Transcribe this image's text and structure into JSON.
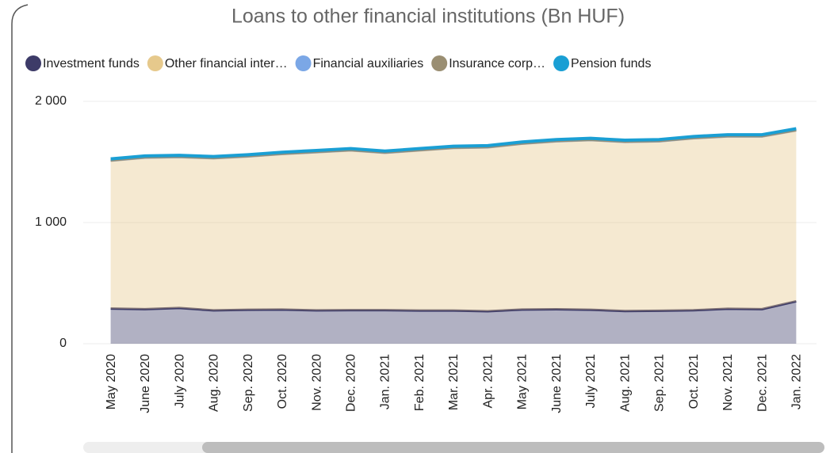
{
  "chart_data": {
    "type": "stacked_area",
    "title": "Loans to other financial institutions (Bn HUF)",
    "categories": [
      "May 2020",
      "June 2020",
      "July 2020",
      "Aug. 2020",
      "Sep. 2020",
      "Oct. 2020",
      "Nov. 2020",
      "Dec. 2020",
      "Jan. 2021",
      "Feb. 2021",
      "Mar. 2021",
      "Apr. 2021",
      "May 2021",
      "June 2021",
      "July 2021",
      "Aug. 2021",
      "Sep. 2021",
      "Oct. 2021",
      "Nov. 2021",
      "Dec. 2021",
      "Jan. 2022"
    ],
    "series": [
      {
        "name": "Investment funds",
        "color": "#3d3b68",
        "values": [
          290,
          285,
          295,
          275,
          280,
          282,
          275,
          277,
          277,
          274,
          274,
          268,
          282,
          284,
          280,
          270,
          272,
          276,
          288,
          285,
          350
        ]
      },
      {
        "name": "Other financial inter…",
        "color": "#e6c98c",
        "values": [
          1220,
          1250,
          1245,
          1255,
          1265,
          1283,
          1305,
          1318,
          1298,
          1321,
          1341,
          1352,
          1368,
          1386,
          1400,
          1395,
          1398,
          1419,
          1422,
          1425,
          1410
        ]
      },
      {
        "name": "Financial auxiliaries",
        "color": "#7ba7e6",
        "values": [
          1,
          1,
          1,
          1,
          1,
          1,
          1,
          1,
          1,
          1,
          1,
          1,
          1,
          1,
          1,
          1,
          1,
          1,
          1,
          1,
          1
        ]
      },
      {
        "name": "Insurance corp…",
        "color": "#9a8e72",
        "values": [
          2,
          2,
          2,
          2,
          2,
          2,
          2,
          2,
          2,
          2,
          2,
          2,
          2,
          2,
          2,
          2,
          2,
          2,
          2,
          2,
          2
        ]
      },
      {
        "name": "Pension funds",
        "color": "#1a9fd4",
        "values": [
          12,
          12,
          12,
          12,
          12,
          12,
          12,
          12,
          12,
          12,
          12,
          12,
          12,
          12,
          12,
          12,
          12,
          12,
          12,
          12,
          12
        ]
      }
    ],
    "ylim": [
      0,
      2000
    ],
    "yticks": [
      0,
      {
        "value": 1000,
        "label": "1 000"
      },
      {
        "value": 2000,
        "label": "2 000"
      }
    ],
    "grid": true,
    "legend": "top"
  }
}
